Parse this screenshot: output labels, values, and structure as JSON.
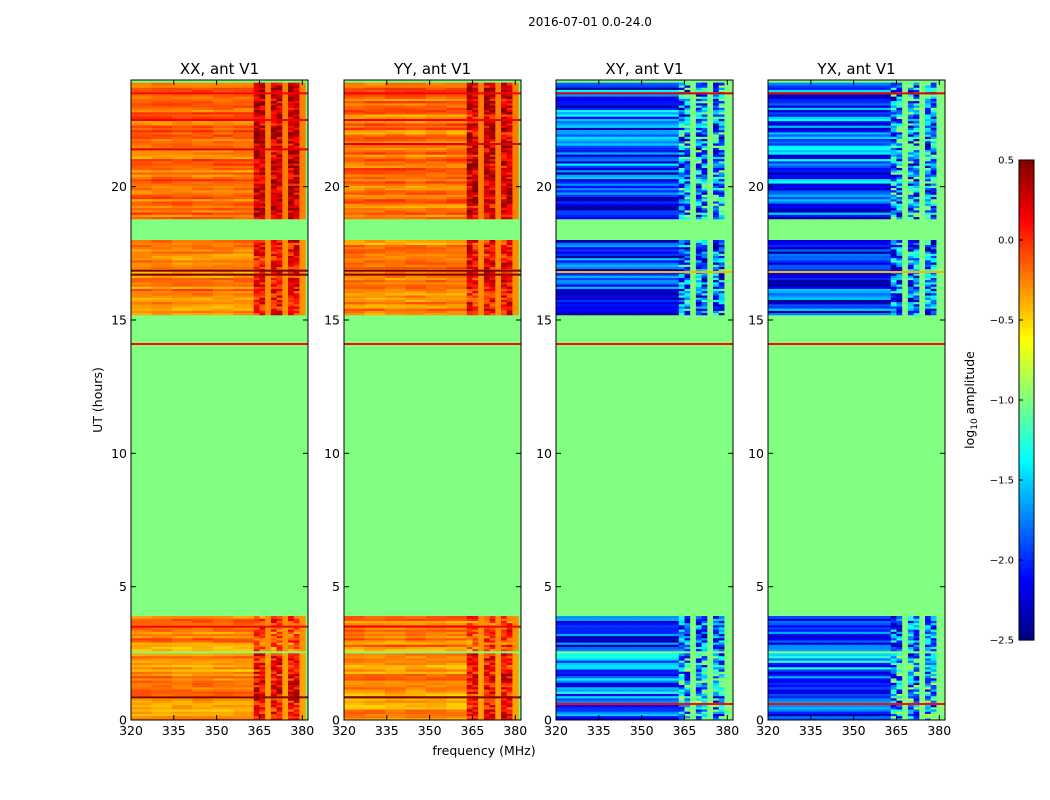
{
  "chart_data": {
    "type": "heatmap",
    "suptitle": "2016-07-01 0.0-24.0",
    "xlabel": "frequency (MHz)",
    "ylabel": "UT (hours)",
    "xlim": [
      320,
      382
    ],
    "ylim": [
      0,
      24
    ],
    "xticks": [
      320,
      335,
      350,
      365,
      380
    ],
    "xtick_labels": [
      "320",
      "335",
      "350",
      "365",
      "380"
    ],
    "yticks": [
      0,
      5,
      10,
      15,
      20
    ],
    "ytick_labels": [
      "0",
      "5",
      "10",
      "15",
      "20"
    ],
    "colormap": "jet",
    "colorbar": {
      "label": "log10 amplitude",
      "label_base": "log",
      "label_sub": "10",
      "label_rest": " amplitude",
      "range": [
        -2.5,
        0.5
      ],
      "ticks": [
        0.5,
        0.0,
        -0.5,
        -1.0,
        -1.5,
        -2.0,
        -2.5
      ],
      "tick_labels": [
        "0.5",
        "0.0",
        "−0.5",
        "−1.0",
        "−1.5",
        "−2.0",
        "−2.5"
      ]
    },
    "background_value": -1.0,
    "panels": [
      {
        "title": "XX, ant V1",
        "mode": "auto",
        "blocks": [
          {
            "t0": 18.8,
            "t1": 23.9,
            "f0": 320,
            "f1": 381,
            "low": -0.45,
            "high": 0.45,
            "split": 363
          },
          {
            "t0": 15.2,
            "t1": 18.0,
            "f0": 320,
            "f1": 381,
            "low": -0.5,
            "high": 0.3,
            "split": 363
          },
          {
            "t0": 2.6,
            "t1": 3.9,
            "f0": 320,
            "f1": 381,
            "low": -0.5,
            "high": 0.1,
            "split": 363
          },
          {
            "t0": 0.0,
            "t1": 2.5,
            "f0": 320,
            "f1": 381,
            "low": -0.55,
            "high": 0.3,
            "split": 363
          }
        ],
        "lines": [
          {
            "t": 14.1,
            "v": 0.1
          },
          {
            "t": 16.85,
            "v": 0.6
          },
          {
            "t": 16.7,
            "v": 0.55
          },
          {
            "t": 23.5,
            "v": 0.15
          },
          {
            "t": 22.5,
            "v": 0.15
          },
          {
            "t": 21.4,
            "v": 0.2
          },
          {
            "t": 0.85,
            "v": 0.6
          },
          {
            "t": 3.5,
            "v": 0.15
          }
        ]
      },
      {
        "title": "YY, ant V1",
        "mode": "auto",
        "blocks": [
          {
            "t0": 18.8,
            "t1": 23.9,
            "f0": 320,
            "f1": 381,
            "low": -0.45,
            "high": 0.45,
            "split": 363
          },
          {
            "t0": 15.2,
            "t1": 18.0,
            "f0": 320,
            "f1": 381,
            "low": -0.5,
            "high": 0.3,
            "split": 363
          },
          {
            "t0": 2.6,
            "t1": 3.9,
            "f0": 320,
            "f1": 381,
            "low": -0.5,
            "high": 0.1,
            "split": 363
          },
          {
            "t0": 0.0,
            "t1": 2.5,
            "f0": 320,
            "f1": 381,
            "low": -0.55,
            "high": 0.3,
            "split": 363
          }
        ],
        "lines": [
          {
            "t": 14.1,
            "v": 0.1
          },
          {
            "t": 16.85,
            "v": 0.6
          },
          {
            "t": 16.7,
            "v": 0.55
          },
          {
            "t": 23.5,
            "v": 0.15
          },
          {
            "t": 22.5,
            "v": 0.15
          },
          {
            "t": 21.6,
            "v": 0.2
          },
          {
            "t": 0.85,
            "v": 0.6
          },
          {
            "t": 3.5,
            "v": 0.15
          }
        ]
      },
      {
        "title": "XY, ant V1",
        "mode": "cross",
        "blocks": [
          {
            "t0": 18.8,
            "t1": 23.9,
            "f0": 320,
            "f1": 381,
            "low": -2.4,
            "high": -1.3,
            "split": 363
          },
          {
            "t0": 15.2,
            "t1": 18.0,
            "f0": 320,
            "f1": 381,
            "low": -2.45,
            "high": -1.5,
            "split": 363
          },
          {
            "t0": 2.6,
            "t1": 3.9,
            "f0": 320,
            "f1": 381,
            "low": -2.4,
            "high": -1.6,
            "split": 363
          },
          {
            "t0": 0.0,
            "t1": 2.5,
            "f0": 320,
            "f1": 381,
            "low": -2.3,
            "high": -1.2,
            "split": 363
          }
        ],
        "lines": [
          {
            "t": 14.1,
            "v": 0.1
          },
          {
            "t": 16.8,
            "v": -0.4
          },
          {
            "t": 23.5,
            "v": 0.2
          },
          {
            "t": 0.6,
            "v": 0.1
          }
        ]
      },
      {
        "title": "YX, ant V1",
        "mode": "cross",
        "blocks": [
          {
            "t0": 18.8,
            "t1": 23.9,
            "f0": 320,
            "f1": 381,
            "low": -2.4,
            "high": -1.3,
            "split": 363
          },
          {
            "t0": 15.2,
            "t1": 18.0,
            "f0": 320,
            "f1": 381,
            "low": -2.45,
            "high": -1.5,
            "split": 363
          },
          {
            "t0": 2.6,
            "t1": 3.9,
            "f0": 320,
            "f1": 381,
            "low": -2.4,
            "high": -1.6,
            "split": 363
          },
          {
            "t0": 0.0,
            "t1": 2.5,
            "f0": 320,
            "f1": 381,
            "low": -2.3,
            "high": -1.2,
            "split": 363
          }
        ],
        "lines": [
          {
            "t": 14.1,
            "v": 0.1
          },
          {
            "t": 16.8,
            "v": -0.4
          },
          {
            "t": 23.5,
            "v": 0.2
          },
          {
            "t": 0.6,
            "v": 0.1
          }
        ]
      }
    ]
  }
}
